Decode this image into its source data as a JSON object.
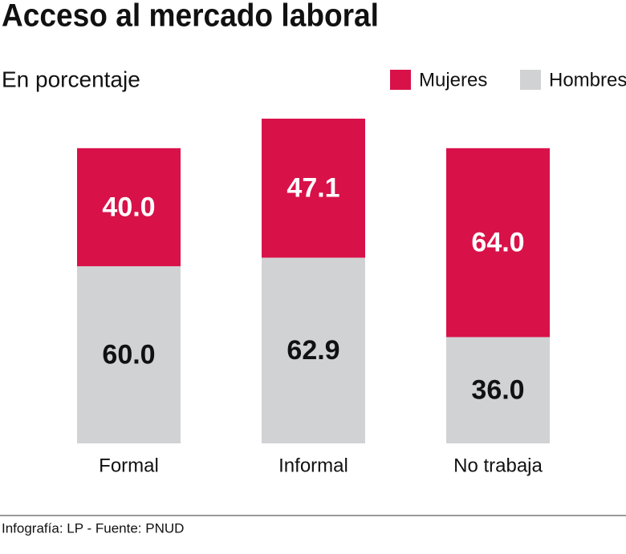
{
  "chart_data": {
    "type": "stacked-bar",
    "title": "Acceso al mercado laboral",
    "subtitle": "En porcentaje",
    "categories": [
      "Formal",
      "Informal",
      "No trabaja"
    ],
    "series": [
      {
        "name": "Hombres",
        "color": "#d1d2d4",
        "label_color": "#111111",
        "values": [
          60,
          62.9,
          36
        ],
        "value_labels": [
          "60.0",
          "62.9",
          "36.0"
        ]
      },
      {
        "name": "Mujeres",
        "color": "#d81249",
        "label_color": "#ffffff",
        "values": [
          40,
          47.1,
          64
        ],
        "value_labels": [
          "40.0",
          "47.1",
          "64.0"
        ]
      }
    ],
    "ylim": [
      0,
      110
    ],
    "legend": "top-right",
    "source": "Infografía: LP - Fuente: PNUD"
  }
}
